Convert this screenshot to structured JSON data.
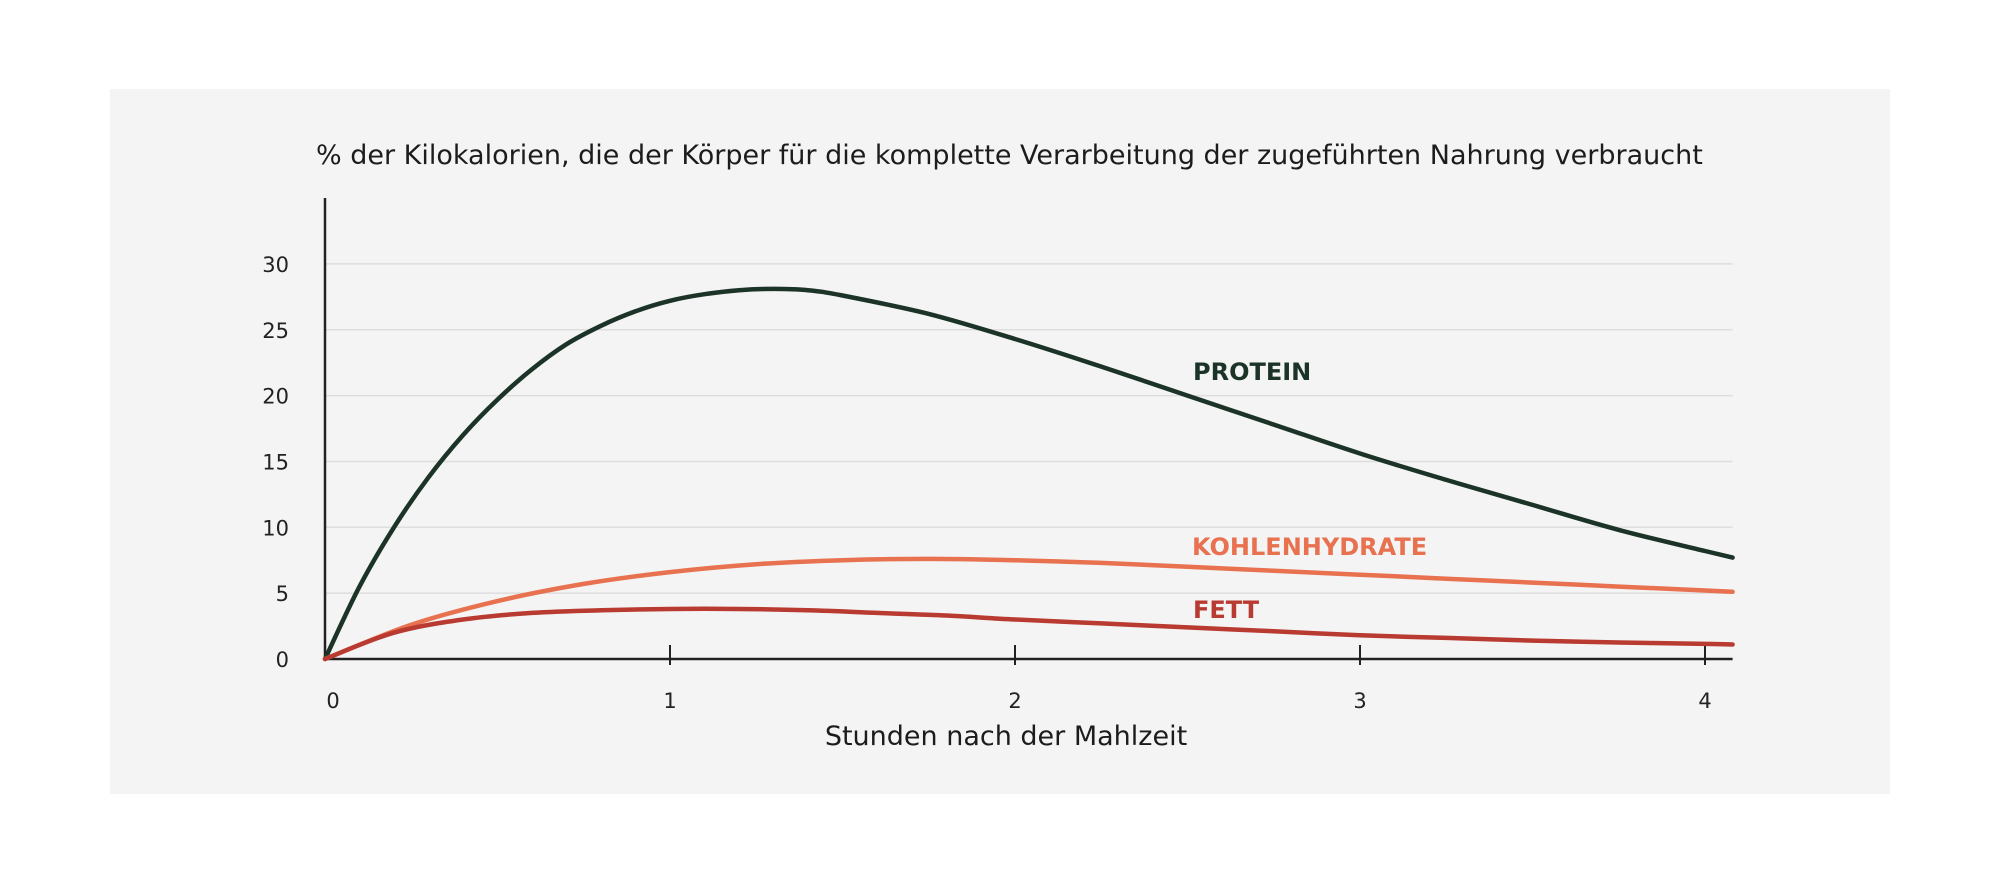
{
  "chart_data": {
    "type": "line",
    "title": "% der Kilokalorien, die der Körper für die komplette Verarbeitung der zugeführten Nahrung verbraucht",
    "xlabel": "Stunden nach der Mahlzeit",
    "ylabel": "",
    "xlim": [
      0,
      4.08
    ],
    "ylim": [
      0,
      35
    ],
    "x_ticks": [
      0,
      1,
      2,
      3,
      4
    ],
    "y_ticks": [
      0,
      5,
      10,
      15,
      20,
      25,
      30
    ],
    "grid": true,
    "legend": "inline labels next to lines",
    "series": [
      {
        "name": "PROTEIN",
        "color": "#1c3328",
        "x": [
          0,
          0.1,
          0.2,
          0.3,
          0.4,
          0.5,
          0.6,
          0.7,
          0.8,
          0.9,
          1.0,
          1.1,
          1.2,
          1.3,
          1.4,
          1.5,
          1.75,
          2.0,
          2.25,
          2.5,
          2.75,
          3.0,
          3.25,
          3.5,
          3.75,
          4.0,
          4.08
        ],
        "y": [
          0,
          5.5,
          10.0,
          13.8,
          17.0,
          19.7,
          22.0,
          23.9,
          25.3,
          26.4,
          27.2,
          27.7,
          28.0,
          28.1,
          28.0,
          27.6,
          26.2,
          24.3,
          22.2,
          20.0,
          17.8,
          15.6,
          13.6,
          11.7,
          9.8,
          8.2,
          7.7
        ]
      },
      {
        "name": "KOHLENHYDRATE",
        "color": "#e8714f",
        "x": [
          0,
          0.25,
          0.5,
          0.75,
          1.0,
          1.25,
          1.5,
          1.75,
          2.0,
          2.25,
          2.5,
          2.75,
          3.0,
          3.25,
          3.5,
          3.75,
          4.0,
          4.08
        ],
        "y": [
          0,
          2.6,
          4.4,
          5.7,
          6.6,
          7.2,
          7.5,
          7.6,
          7.5,
          7.3,
          7.0,
          6.7,
          6.4,
          6.1,
          5.8,
          5.5,
          5.2,
          5.1
        ]
      },
      {
        "name": "FETT",
        "color": "#b83a30",
        "x": [
          0,
          0.2,
          0.4,
          0.6,
          0.8,
          1.0,
          1.2,
          1.4,
          1.6,
          1.8,
          2.0,
          2.25,
          2.5,
          2.75,
          3.0,
          3.25,
          3.5,
          3.75,
          4.0,
          4.08
        ],
        "y": [
          0,
          2.0,
          3.0,
          3.5,
          3.7,
          3.8,
          3.8,
          3.7,
          3.5,
          3.3,
          3.0,
          2.7,
          2.4,
          2.1,
          1.8,
          1.6,
          1.4,
          1.25,
          1.15,
          1.1
        ]
      }
    ]
  }
}
